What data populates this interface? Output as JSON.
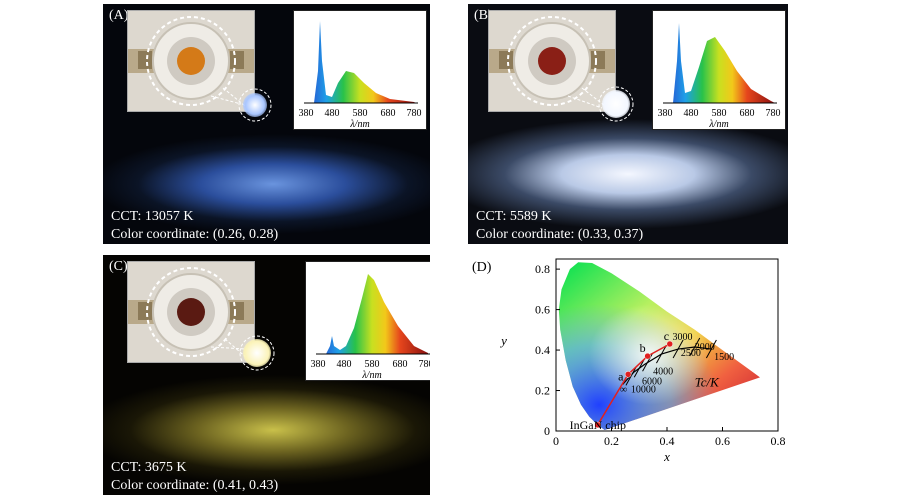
{
  "panels": [
    {
      "label": "(A)",
      "cct_line": "CCT: 13057 K",
      "coord_line": "Color coordinate: (0.26, 0.28)",
      "led_color": "#d47a18",
      "floor_color": "#8fb6f2",
      "bulb_color": "#a9c6ff"
    },
    {
      "label": "(B)",
      "cct_line": "CCT: 5589 K",
      "coord_line": "Color coordinate: (0.33, 0.37)",
      "led_color": "#8a1f16",
      "floor_color": "#e7efff",
      "bulb_color": "#f3f7ff"
    },
    {
      "label": "(C)",
      "cct_line": "CCT: 3675 K",
      "coord_line": "Color coordinate: (0.41, 0.43)",
      "led_color": "#5a1a12",
      "floor_color": "#c9c04a",
      "bulb_color": "#fbf3b8"
    }
  ],
  "spectrum_axis": {
    "ticks": [
      "380",
      "480",
      "580",
      "680",
      "780"
    ],
    "xlabel": "λ/nm"
  },
  "cie": {
    "label": "(D)",
    "xlabel": "x",
    "ylabel": "y",
    "xticks": [
      "0",
      "0.2",
      "0.4",
      "0.6",
      "0.8"
    ],
    "yticks": [
      "0",
      "0.2",
      "0.4",
      "0.6",
      "0.8"
    ],
    "tc_label": "Tc/K",
    "chip_label": "InGaN chip",
    "point_labels": [
      "a",
      "b",
      "c"
    ],
    "temps": [
      "10000",
      "6000",
      "4000",
      "3000",
      "2500",
      "2000",
      "1500"
    ],
    "infinity": "∞"
  },
  "chart_data": {
    "type": "scatter",
    "title": "",
    "xlabel": "x",
    "ylabel": "y",
    "xlim": [
      0,
      0.8
    ],
    "ylim": [
      0,
      0.85
    ],
    "series": [
      {
        "name": "",
        "x": [
          0.15,
          0.26,
          0.33,
          0.41
        ],
        "y": [
          0.03,
          0.28,
          0.37,
          0.43
        ],
        "labels": [
          "InGaN chip",
          "a",
          "b",
          "c"
        ]
      }
    ]
  }
}
